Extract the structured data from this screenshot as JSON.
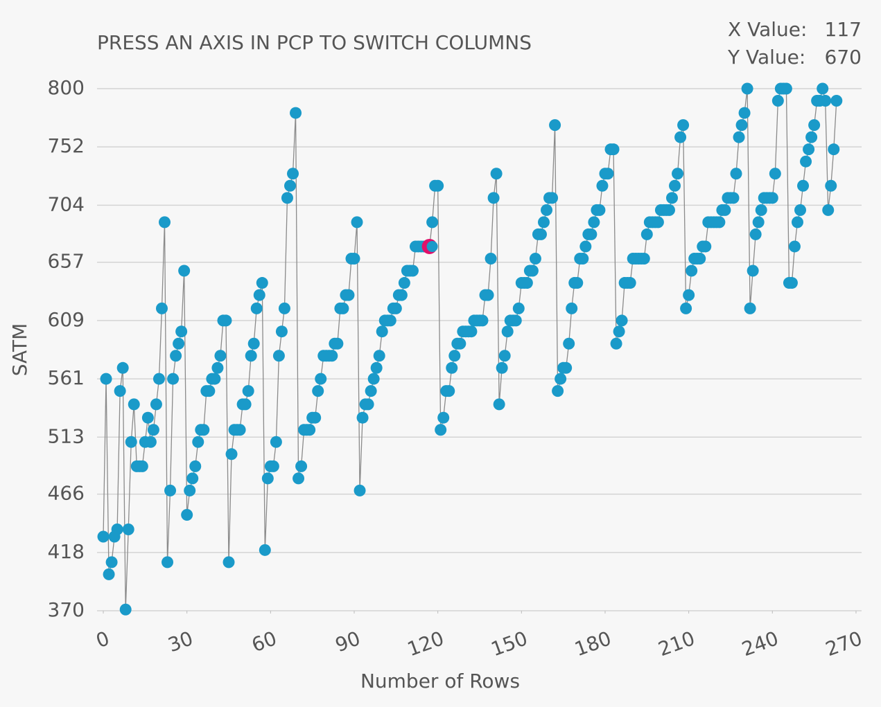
{
  "chart_data": {
    "type": "line",
    "title": "PRESS AN AXIS IN PCP TO SWITCH COLUMNS",
    "x_label": "Number of Rows",
    "y_label": "SATM",
    "color": "#1a9ac9",
    "line_color": "#8a8a8a",
    "highlight_color": "#e0106a",
    "grid": true,
    "xlim": [
      -1,
      272
    ],
    "xticks": [
      0,
      30,
      60,
      90,
      120,
      150,
      180,
      210,
      240,
      270
    ],
    "ylim": [
      370,
      800
    ],
    "yticks": [
      370,
      418,
      466,
      513,
      561,
      609,
      657,
      704,
      752,
      800
    ],
    "values": [
      431,
      561,
      400,
      410,
      431,
      437,
      551,
      570,
      371,
      437,
      509,
      540,
      489,
      489,
      489,
      509,
      529,
      509,
      519,
      540,
      561,
      619,
      690,
      410,
      469,
      561,
      580,
      590,
      600,
      650,
      449,
      469,
      479,
      489,
      509,
      519,
      519,
      551,
      551,
      561,
      561,
      570,
      580,
      609,
      609,
      410,
      499,
      519,
      519,
      519,
      540,
      540,
      551,
      580,
      590,
      619,
      630,
      640,
      420,
      479,
      489,
      489,
      509,
      580,
      600,
      619,
      710,
      720,
      730,
      780,
      479,
      489,
      519,
      519,
      519,
      529,
      529,
      551,
      561,
      580,
      580,
      580,
      580,
      590,
      590,
      619,
      619,
      630,
      630,
      660,
      660,
      690,
      469,
      529,
      540,
      540,
      551,
      561,
      570,
      580,
      600,
      609,
      609,
      609,
      619,
      619,
      630,
      630,
      640,
      650,
      650,
      650,
      670,
      670,
      670,
      670,
      670,
      670,
      690,
      720,
      720,
      519,
      529,
      551,
      551,
      570,
      580,
      590,
      590,
      600,
      600,
      600,
      600,
      609,
      609,
      609,
      609,
      630,
      630,
      660,
      710,
      730,
      540,
      570,
      580,
      600,
      609,
      609,
      609,
      619,
      640,
      640,
      640,
      650,
      650,
      660,
      680,
      680,
      690,
      700,
      710,
      710,
      770,
      551,
      561,
      570,
      570,
      590,
      619,
      640,
      640,
      660,
      660,
      670,
      680,
      680,
      690,
      700,
      700,
      720,
      730,
      730,
      750,
      750,
      590,
      600,
      609,
      640,
      640,
      640,
      660,
      660,
      660,
      660,
      660,
      680,
      690,
      690,
      690,
      690,
      700,
      700,
      700,
      700,
      710,
      720,
      730,
      760,
      770,
      619,
      630,
      650,
      660,
      660,
      660,
      670,
      670,
      690,
      690,
      690,
      690,
      690,
      700,
      700,
      710,
      710,
      710,
      730,
      760,
      770,
      780,
      800,
      619,
      650,
      680,
      690,
      700,
      710,
      710,
      710,
      710,
      730,
      790,
      800,
      800,
      800,
      640,
      640,
      670,
      690,
      700,
      720,
      740,
      750,
      760,
      770,
      790,
      790,
      800,
      790,
      700,
      720,
      750,
      790
    ],
    "hover": {
      "x_label": "X Value:",
      "x": 117,
      "y_label": "Y Value:",
      "y": 670
    }
  }
}
